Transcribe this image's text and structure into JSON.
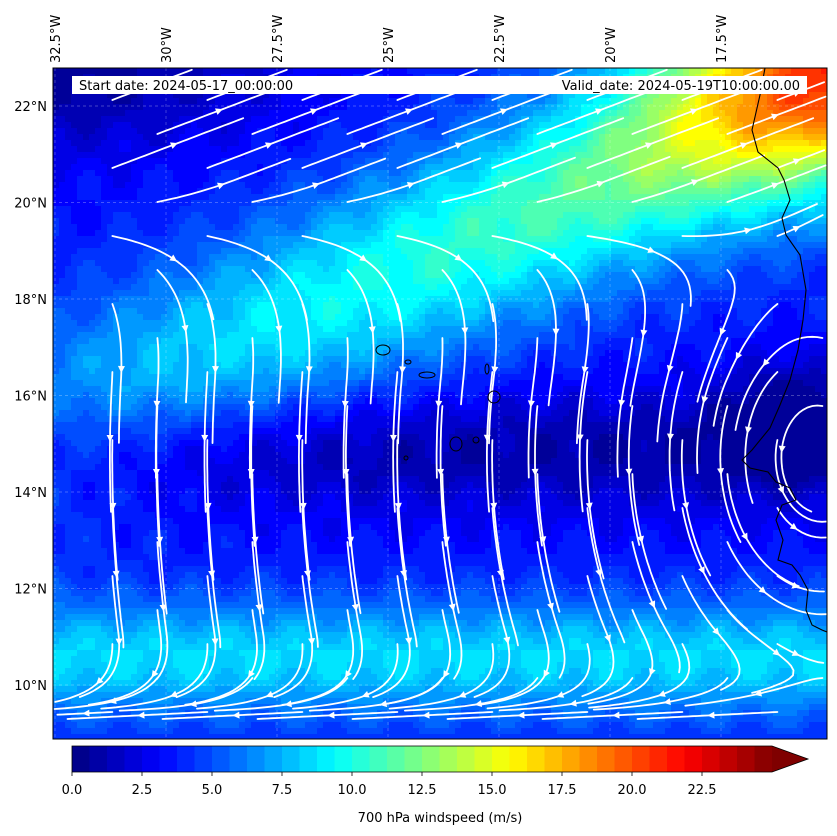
{
  "map": {
    "start_date": "Start date: 2024-05-17_00:00:00",
    "valid_date": "Valid_date: 2024-05-19T10:00:00.00",
    "lon_ticks": [
      {
        "lon": -32.5,
        "label": "32.5°W"
      },
      {
        "lon": -30.0,
        "label": "30°W"
      },
      {
        "lon": -27.5,
        "label": "27.5°W"
      },
      {
        "lon": -25.0,
        "label": "25°W"
      },
      {
        "lon": -22.5,
        "label": "22.5°W"
      },
      {
        "lon": -20.0,
        "label": "20°W"
      },
      {
        "lon": -17.5,
        "label": "17.5°W"
      }
    ],
    "lat_ticks": [
      {
        "lat": 22,
        "label": "22°N"
      },
      {
        "lat": 20,
        "label": "20°N"
      },
      {
        "lat": 18,
        "label": "18°N"
      },
      {
        "lat": 16,
        "label": "16°N"
      },
      {
        "lat": 14,
        "label": "14°N"
      },
      {
        "lat": 12,
        "label": "12°N"
      },
      {
        "lat": 10,
        "label": "10°N"
      }
    ],
    "colorbar": {
      "label": "700 hPa windspeed (m/s)",
      "min": 0,
      "max": 25,
      "extend": "max",
      "ticks": [
        {
          "v": 0,
          "label": "0.0"
        },
        {
          "v": 2.5,
          "label": "2.5"
        },
        {
          "v": 5,
          "label": "5.0"
        },
        {
          "v": 7.5,
          "label": "7.5"
        },
        {
          "v": 10,
          "label": "10.0"
        },
        {
          "v": 12.5,
          "label": "12.5"
        },
        {
          "v": 15,
          "label": "15.0"
        },
        {
          "v": 17.5,
          "label": "17.5"
        },
        {
          "v": 20,
          "label": "20.0"
        },
        {
          "v": 22.5,
          "label": "22.5"
        }
      ]
    },
    "colormap": "jet",
    "streamline_color": "#ffffff",
    "coastline_color": "#000000"
  }
}
